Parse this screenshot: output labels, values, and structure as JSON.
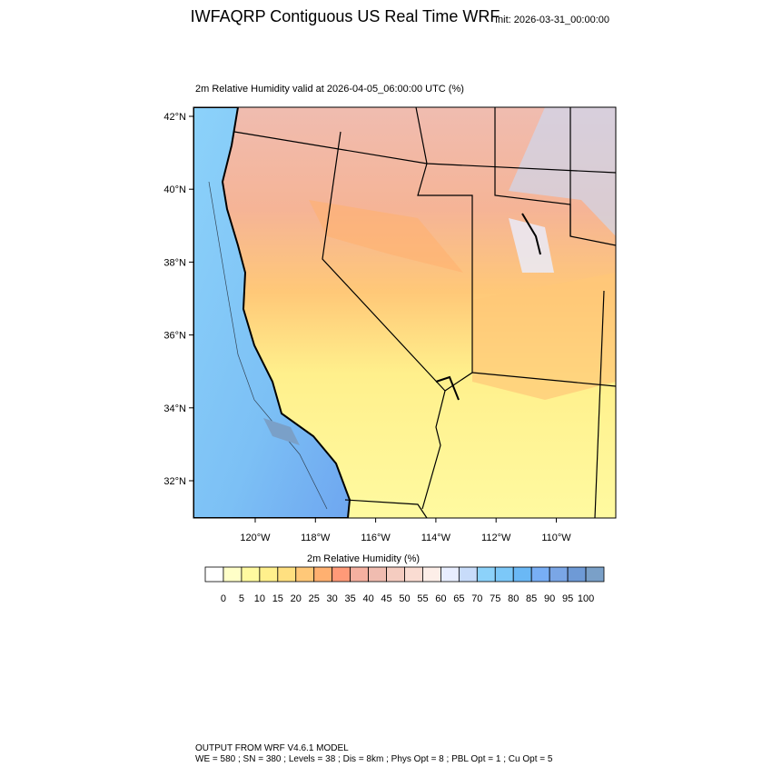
{
  "header": {
    "title": "IWFAQRP Contiguous US Real Time WRF",
    "init": "Init: 2026-03-31_00:00:00"
  },
  "map": {
    "subtitle": "2m Relative Humidity valid at 2026-04-05_06:00:00 UTC   (%)",
    "lat_labels": [
      "42°N",
      "40°N",
      "38°N",
      "36°N",
      "34°N",
      "32°N"
    ],
    "lon_labels": [
      "120°W",
      "118°W",
      "116°W",
      "114°W",
      "112°W",
      "110°W"
    ]
  },
  "colorbar": {
    "title": "2m Relative Humidity  (%)",
    "labels": [
      0,
      5,
      10,
      15,
      20,
      25,
      30,
      35,
      40,
      45,
      50,
      55,
      60,
      65,
      70,
      75,
      80,
      85,
      90,
      95,
      100
    ],
    "colors": [
      "#ffffff",
      "#ffffc8",
      "#fffaa0",
      "#fff08c",
      "#ffe080",
      "#ffc878",
      "#ffb070",
      "#ff9a78",
      "#f5b0a0",
      "#f0bcb0",
      "#f5ccc0",
      "#fadcd2",
      "#fdeee8",
      "#e8eeff",
      "#c8dcfa",
      "#8cd2fa",
      "#7cc8f8",
      "#6ab8f5",
      "#78aef5",
      "#7aa6e6",
      "#6e9ad6",
      "#7aa0c8"
    ]
  },
  "footer": {
    "line1": "OUTPUT FROM WRF V4.6.1 MODEL",
    "line2": "WE = 580 ; SN = 380 ; Levels = 38 ; Dis = 8km ; Phys Opt = 8 ; PBL Opt = 1 ; Cu Opt = 5"
  }
}
